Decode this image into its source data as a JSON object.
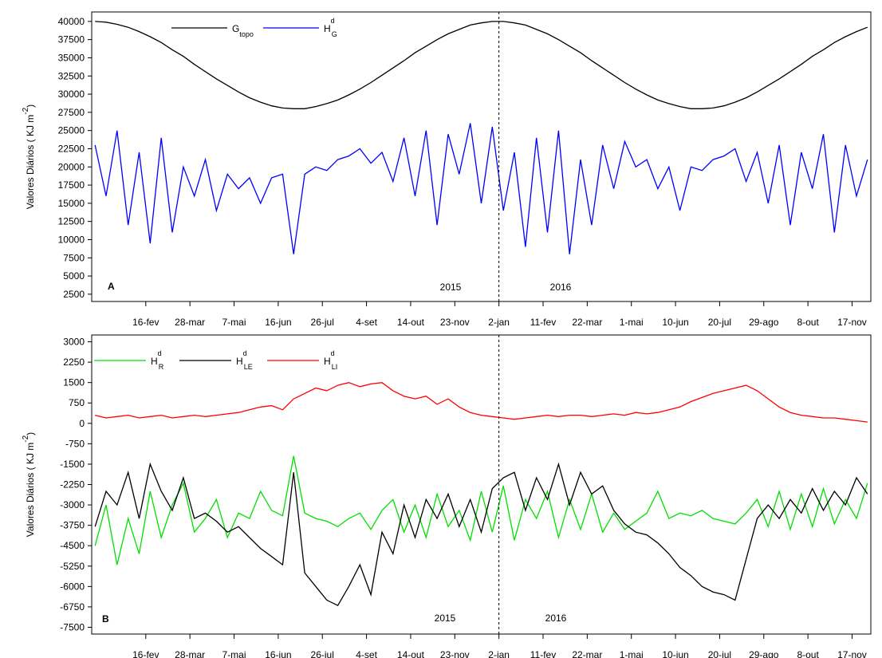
{
  "chart_data": [
    {
      "type": "line",
      "panel_label": "A",
      "annotations": [
        "2015",
        "2016"
      ],
      "ylabel": {
        "text": "Valores Diários (  KJ m",
        "sup": "-2",
        "end": ")"
      },
      "vline_x": 366,
      "x": [
        0,
        10,
        20,
        30,
        40,
        50,
        60,
        70,
        80,
        90,
        100,
        110,
        120,
        130,
        140,
        150,
        160,
        170,
        180,
        190,
        200,
        210,
        220,
        230,
        240,
        250,
        260,
        270,
        280,
        290,
        300,
        310,
        320,
        330,
        340,
        350,
        360,
        370,
        380,
        390,
        400,
        410,
        420,
        430,
        440,
        450,
        460,
        470,
        480,
        490,
        500,
        510,
        520,
        530,
        540,
        550,
        560,
        570,
        580,
        590,
        600,
        610,
        620,
        630,
        640,
        650,
        660,
        670,
        680,
        690,
        700
      ],
      "series": [
        {
          "name": "G",
          "subscript": "topo",
          "color": "#000000",
          "values": [
            40000,
            39900,
            39600,
            39200,
            38600,
            37900,
            37100,
            36100,
            35200,
            34100,
            33100,
            32100,
            31200,
            30300,
            29500,
            28900,
            28400,
            28100,
            28000,
            28000,
            28300,
            28700,
            29200,
            29900,
            30700,
            31600,
            32600,
            33600,
            34600,
            35700,
            36600,
            37500,
            38300,
            38900,
            39500,
            39800,
            40000,
            40000,
            39800,
            39500,
            38900,
            38300,
            37500,
            36600,
            35700,
            34600,
            33600,
            32600,
            31600,
            30700,
            29900,
            29200,
            28700,
            28300,
            28000,
            28000,
            28100,
            28400,
            28900,
            29500,
            30300,
            31200,
            32100,
            33100,
            34100,
            35200,
            36100,
            37100,
            37900,
            38600,
            39200
          ]
        },
        {
          "name": "H",
          "superscript": "d",
          "subscript": "G",
          "color": "#0000ff",
          "values": [
            23000,
            16000,
            25000,
            12000,
            22000,
            9500,
            24000,
            11000,
            20000,
            16000,
            21000,
            14000,
            19000,
            17000,
            18500,
            15000,
            18500,
            19000,
            8000,
            19000,
            20000,
            19500,
            21000,
            21500,
            22500,
            20500,
            22000,
            18000,
            24000,
            16000,
            25000,
            12000,
            24500,
            19000,
            26000,
            15000,
            25500,
            14000,
            22000,
            9000,
            24000,
            11000,
            25000,
            8000,
            21000,
            12000,
            23000,
            17000,
            23500,
            20000,
            21000,
            17000,
            20000,
            14000,
            20000,
            19500,
            21000,
            21500,
            22500,
            18000,
            22000,
            15000,
            23000,
            12000,
            22000,
            17000,
            24500,
            11000,
            23000,
            16000,
            21000
          ]
        }
      ],
      "xlim": [
        -3,
        703
      ],
      "xticks": [
        {
          "value": 46,
          "label": "16-fev"
        },
        {
          "value": 86,
          "label": "28-mar"
        },
        {
          "value": 126,
          "label": "7-mai"
        },
        {
          "value": 166,
          "label": "16-jun"
        },
        {
          "value": 206,
          "label": "26-jul"
        },
        {
          "value": 246,
          "label": "4-set"
        },
        {
          "value": 286,
          "label": "14-out"
        },
        {
          "value": 326,
          "label": "23-nov"
        },
        {
          "value": 366,
          "label": "2-jan"
        },
        {
          "value": 406,
          "label": "11-fev"
        },
        {
          "value": 446,
          "label": "22-mar"
        },
        {
          "value": 486,
          "label": "1-mai"
        },
        {
          "value": 526,
          "label": "10-jun"
        },
        {
          "value": 566,
          "label": "20-jul"
        },
        {
          "value": 606,
          "label": "29-ago"
        },
        {
          "value": 646,
          "label": "8-out"
        },
        {
          "value": 686,
          "label": "17-nov"
        }
      ],
      "ylim": [
        1500,
        41300
      ],
      "yticks": [
        2500,
        5000,
        7500,
        10000,
        12500,
        15000,
        17500,
        20000,
        22500,
        25000,
        27500,
        30000,
        32500,
        35000,
        37500,
        40000
      ]
    },
    {
      "type": "line",
      "panel_label": "B",
      "annotations": [
        "2015",
        "2016"
      ],
      "ylabel": {
        "text": "Valores Diários (  KJ m",
        "sup": "-2",
        "end": ")"
      },
      "vline_x": 366,
      "x": [
        0,
        10,
        20,
        30,
        40,
        50,
        60,
        70,
        80,
        90,
        100,
        110,
        120,
        130,
        140,
        150,
        160,
        170,
        180,
        190,
        200,
        210,
        220,
        230,
        240,
        250,
        260,
        270,
        280,
        290,
        300,
        310,
        320,
        330,
        340,
        350,
        360,
        370,
        380,
        390,
        400,
        410,
        420,
        430,
        440,
        450,
        460,
        470,
        480,
        490,
        500,
        510,
        520,
        530,
        540,
        550,
        560,
        570,
        580,
        590,
        600,
        610,
        620,
        630,
        640,
        650,
        660,
        670,
        680,
        690,
        700
      ],
      "series": [
        {
          "name": "H",
          "superscript": "d",
          "subscript": "R",
          "color": "#00e000",
          "values": [
            -4500,
            -3000,
            -5200,
            -3500,
            -4800,
            -2500,
            -4200,
            -3000,
            -2200,
            -4000,
            -3500,
            -2800,
            -4200,
            -3300,
            -3500,
            -2500,
            -3200,
            -3400,
            -1200,
            -3300,
            -3500,
            -3600,
            -3800,
            -3500,
            -3300,
            -3900,
            -3200,
            -2800,
            -4000,
            -3000,
            -4200,
            -2600,
            -3800,
            -3200,
            -4300,
            -2500,
            -4000,
            -2300,
            -4300,
            -2800,
            -3500,
            -2500,
            -4200,
            -2800,
            -3900,
            -2600,
            -4000,
            -3300,
            -3900,
            -3600,
            -3300,
            -2500,
            -3500,
            -3300,
            -3400,
            -3200,
            -3500,
            -3600,
            -3700,
            -3300,
            -2800,
            -3800,
            -2500,
            -3900,
            -2600,
            -3800,
            -2400,
            -3700,
            -2800,
            -3500,
            -2200
          ]
        },
        {
          "name": "H",
          "superscript": "d",
          "subscript": "LE",
          "color": "#000000",
          "values": [
            -3800,
            -2500,
            -3000,
            -1800,
            -3500,
            -1500,
            -2500,
            -3200,
            -2000,
            -3500,
            -3300,
            -3600,
            -4000,
            -3800,
            -4200,
            -4600,
            -4900,
            -5200,
            -1800,
            -5500,
            -6000,
            -6500,
            -6700,
            -6000,
            -5200,
            -6300,
            -4000,
            -4800,
            -3000,
            -4200,
            -2800,
            -3500,
            -2600,
            -3800,
            -2800,
            -4000,
            -2400,
            -2000,
            -1800,
            -3200,
            -2000,
            -2800,
            -1500,
            -3000,
            -1800,
            -2600,
            -2300,
            -3200,
            -3700,
            -4000,
            -4100,
            -4400,
            -4800,
            -5300,
            -5600,
            -6000,
            -6200,
            -6300,
            -6500,
            -5000,
            -3500,
            -3000,
            -3500,
            -2800,
            -3300,
            -2400,
            -3200,
            -2500,
            -3000,
            -2000,
            -2600
          ]
        },
        {
          "name": "H",
          "superscript": "d",
          "subscript": "LI",
          "color": "#ff0000",
          "values": [
            300,
            200,
            250,
            300,
            200,
            250,
            300,
            200,
            250,
            300,
            250,
            300,
            350,
            400,
            500,
            600,
            650,
            500,
            900,
            1100,
            1300,
            1200,
            1400,
            1500,
            1350,
            1450,
            1500,
            1200,
            1000,
            900,
            1000,
            700,
            900,
            600,
            400,
            300,
            250,
            200,
            150,
            200,
            250,
            300,
            250,
            300,
            300,
            250,
            300,
            350,
            300,
            400,
            350,
            400,
            500,
            600,
            800,
            950,
            1100,
            1200,
            1300,
            1400,
            1200,
            900,
            600,
            400,
            300,
            250,
            200,
            200,
            150,
            100,
            50
          ]
        }
      ],
      "xlim": [
        -3,
        703
      ],
      "xticks": [
        {
          "value": 46,
          "label": "16-fev"
        },
        {
          "value": 86,
          "label": "28-mar"
        },
        {
          "value": 126,
          "label": "7-mai"
        },
        {
          "value": 166,
          "label": "16-jun"
        },
        {
          "value": 206,
          "label": "26-jul"
        },
        {
          "value": 246,
          "label": "4-set"
        },
        {
          "value": 286,
          "label": "14-out"
        },
        {
          "value": 326,
          "label": "23-nov"
        },
        {
          "value": 366,
          "label": "2-jan"
        },
        {
          "value": 406,
          "label": "11-fev"
        },
        {
          "value": 446,
          "label": "22-mar"
        },
        {
          "value": 486,
          "label": "1-mai"
        },
        {
          "value": 526,
          "label": "10-jun"
        },
        {
          "value": 566,
          "label": "20-jul"
        },
        {
          "value": 606,
          "label": "29-ago"
        },
        {
          "value": 646,
          "label": "8-out"
        },
        {
          "value": 686,
          "label": "17-nov"
        }
      ],
      "ylim": [
        -7750,
        3250
      ],
      "yticks": [
        -7500,
        -6750,
        -6000,
        -5250,
        -4500,
        -3750,
        -3000,
        -2250,
        -1500,
        -750,
        0,
        750,
        1500,
        2250,
        3000
      ]
    }
  ]
}
